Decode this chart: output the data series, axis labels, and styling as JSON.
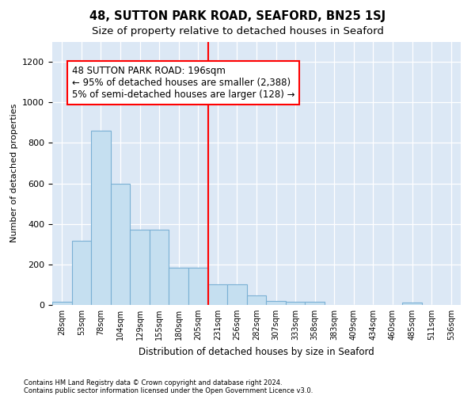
{
  "title": "48, SUTTON PARK ROAD, SEAFORD, BN25 1SJ",
  "subtitle": "Size of property relative to detached houses in Seaford",
  "xlabel": "Distribution of detached houses by size in Seaford",
  "ylabel": "Number of detached properties",
  "footnote1": "Contains HM Land Registry data © Crown copyright and database right 2024.",
  "footnote2": "Contains public sector information licensed under the Open Government Licence v3.0.",
  "bar_labels": [
    "28sqm",
    "53sqm",
    "78sqm",
    "104sqm",
    "129sqm",
    "155sqm",
    "180sqm",
    "205sqm",
    "231sqm",
    "256sqm",
    "282sqm",
    "307sqm",
    "333sqm",
    "358sqm",
    "383sqm",
    "409sqm",
    "434sqm",
    "460sqm",
    "485sqm",
    "511sqm",
    "536sqm"
  ],
  "bar_values": [
    15,
    315,
    860,
    600,
    370,
    370,
    185,
    185,
    100,
    100,
    45,
    20,
    15,
    15,
    0,
    0,
    0,
    0,
    10,
    0,
    0
  ],
  "bar_color": "#c5dff0",
  "bar_edge_color": "#7ab0d4",
  "vline_x": 7.5,
  "vline_color": "red",
  "annotation_text": "48 SUTTON PARK ROAD: 196sqm\n← 95% of detached houses are smaller (2,388)\n5% of semi-detached houses are larger (128) →",
  "annotation_box_color": "white",
  "annotation_box_edge": "red",
  "ylim": [
    0,
    1300
  ],
  "yticks": [
    0,
    200,
    400,
    600,
    800,
    1000,
    1200
  ],
  "bg_color": "#dce8f5",
  "title_fontsize": 10.5,
  "subtitle_fontsize": 9.5,
  "annotation_fontsize": 8.5
}
